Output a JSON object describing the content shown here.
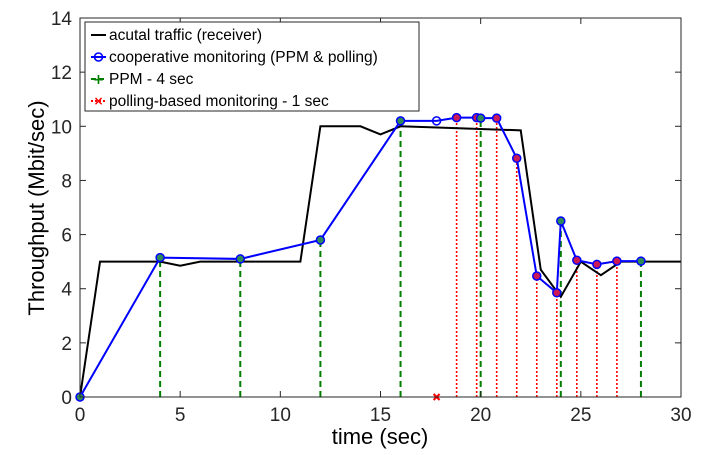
{
  "chart_data": {
    "type": "line",
    "xlabel": "time (sec)",
    "ylabel": "Throughput (Mbit/sec)",
    "xlim": [
      0,
      30
    ],
    "ylim": [
      0,
      14
    ],
    "xticks": [
      0,
      5,
      10,
      15,
      20,
      25,
      30
    ],
    "yticks": [
      0,
      2,
      4,
      6,
      8,
      10,
      12,
      14
    ],
    "grid": false,
    "legend_position": "top-left",
    "series": [
      {
        "name": "acutal traffic (receiver)",
        "color": "#000000",
        "style": "solid",
        "x": [
          0,
          1,
          4,
          5,
          6,
          11,
          12,
          14,
          15,
          16,
          22,
          23,
          24,
          25,
          26,
          27,
          28,
          30
        ],
        "y": [
          0,
          5,
          5,
          4.85,
          5,
          5,
          10,
          10,
          9.7,
          10,
          9.85,
          4.7,
          3.7,
          5,
          4.5,
          5,
          5,
          5
        ]
      },
      {
        "name": "cooperative monitoring (PPM & polling)",
        "color": "#0000ff",
        "marker_edge": "#0000ff",
        "style": "solid-circle",
        "x": [
          0,
          4,
          8,
          12,
          16,
          17.8,
          18.8,
          19.8,
          20,
          20.8,
          21.8,
          22.8,
          23.8,
          24,
          24.8,
          25.8,
          26.8,
          28
        ],
        "y": [
          0,
          5.15,
          5.1,
          5.8,
          10.2,
          10.2,
          10.32,
          10.32,
          10.3,
          10.3,
          8.82,
          4.47,
          3.85,
          6.5,
          5.05,
          4.9,
          5.02,
          5.02
        ]
      },
      {
        "name": "PPM - 4 sec",
        "color": "#007f00",
        "style": "dashed-stem",
        "marker_fill": "#2e8b57",
        "x": [
          0,
          4,
          8,
          12,
          16,
          20,
          24,
          28
        ],
        "y": [
          0,
          5.15,
          5.1,
          5.8,
          10.2,
          10.3,
          6.5,
          5.02
        ]
      },
      {
        "name": "polling-based monitoring - 1 sec",
        "color": "#ff0000",
        "style": "dotted-stem",
        "marker_fill": "#cc1a55",
        "x": [
          17.8,
          18.8,
          19.8,
          20.8,
          21.8,
          22.8,
          23.8,
          24.8,
          25.8,
          26.8
        ],
        "y": [
          0,
          10.32,
          10.32,
          10.3,
          8.82,
          4.47,
          3.85,
          5.05,
          4.9,
          5.02
        ]
      }
    ]
  }
}
